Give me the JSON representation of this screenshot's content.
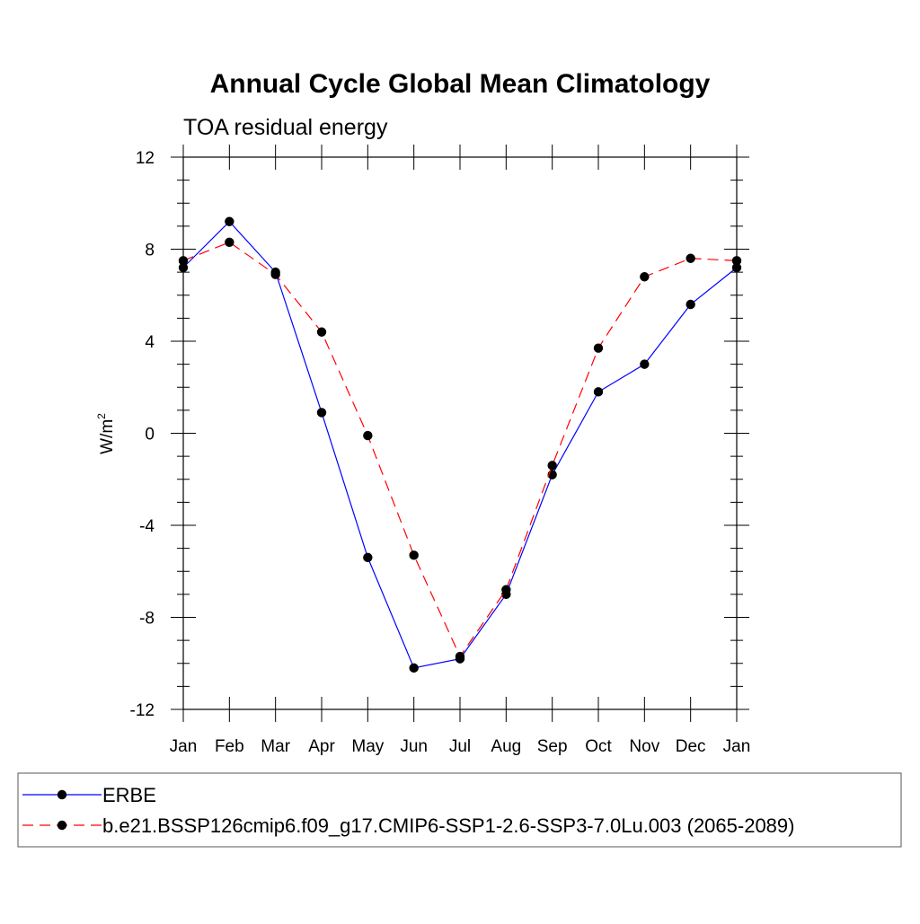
{
  "chart_data": {
    "type": "line",
    "title": "Annual Cycle Global Mean Climatology",
    "subtitle": "TOA residual energy",
    "ylabel_base": "W/m",
    "ylabel_sup": "2",
    "xlabel": "",
    "categories": [
      "Jan",
      "Feb",
      "Mar",
      "Apr",
      "May",
      "Jun",
      "Jul",
      "Aug",
      "Sep",
      "Oct",
      "Nov",
      "Dec",
      "Jan"
    ],
    "ylim": [
      -12,
      12
    ],
    "yticks": [
      12,
      8,
      4,
      0,
      -4,
      -8,
      -12
    ],
    "ytick_labels": [
      "12",
      "8",
      "4",
      "0",
      "-4",
      "-8",
      "-12"
    ],
    "grid": false,
    "legend_placement": "bottom",
    "series": [
      {
        "name": "ERBE",
        "color": "#0000ff",
        "dash": "solid",
        "marker": "filled-circle",
        "values": [
          7.2,
          9.2,
          7.0,
          0.9,
          -5.4,
          -10.2,
          -9.8,
          -7.0,
          -1.8,
          1.8,
          3.0,
          5.6,
          7.2
        ]
      },
      {
        "name": "b.e21.BSSP126cmip6.f09_g17.CMIP6-SSP1-2.6-SSP3-7.0Lu.003 (2065-2089)",
        "color": "#ff0000",
        "dash": "dashed",
        "marker": "filled-circle",
        "values": [
          7.5,
          8.3,
          6.9,
          4.4,
          -0.1,
          -5.3,
          -9.7,
          -6.8,
          -1.4,
          3.7,
          6.8,
          7.6,
          7.5
        ]
      }
    ]
  }
}
